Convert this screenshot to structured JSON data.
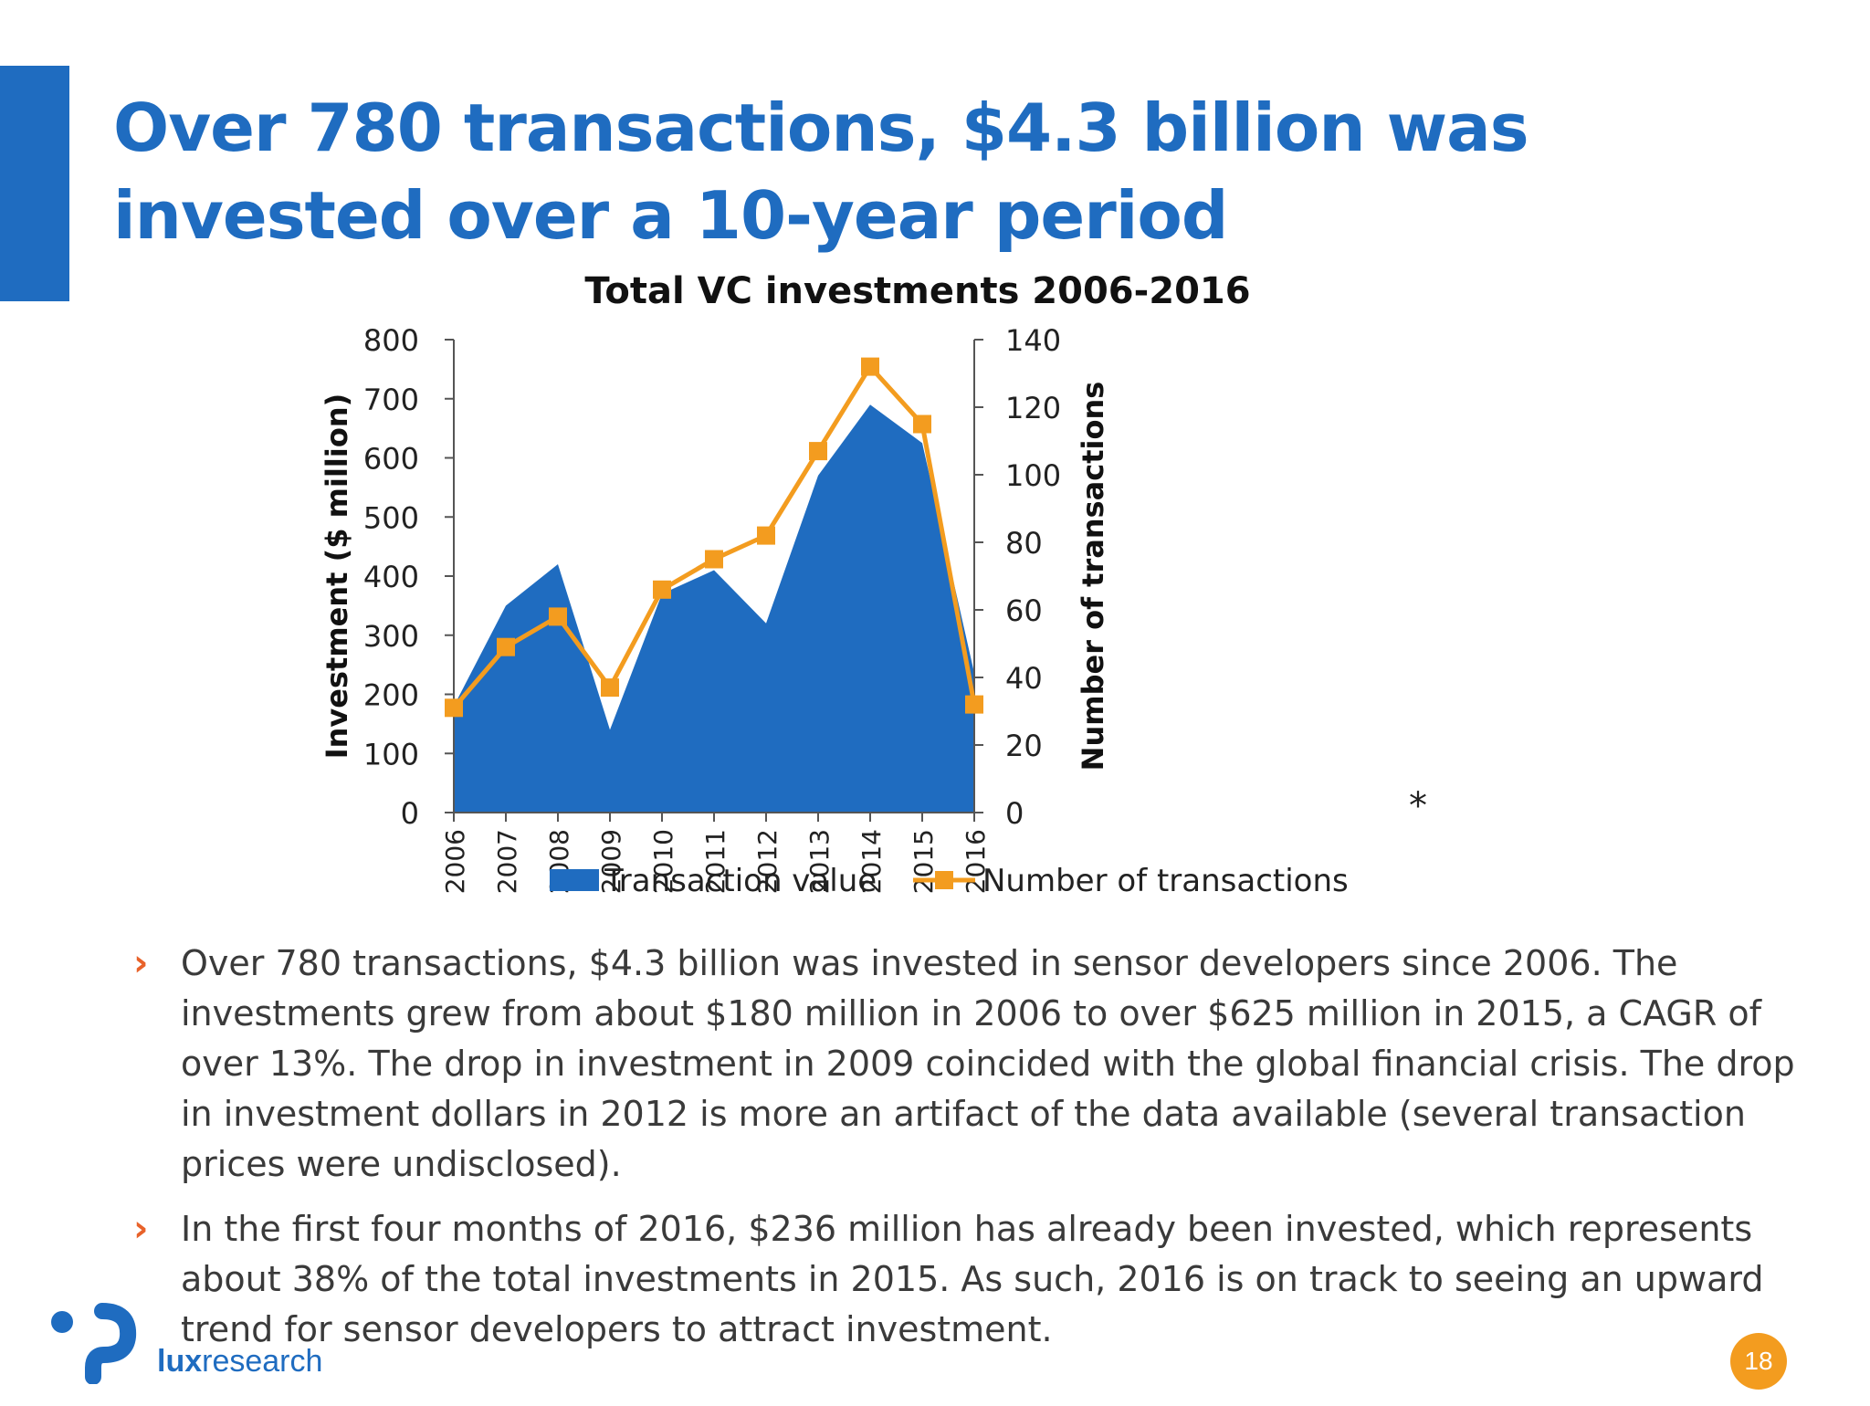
{
  "slide": {
    "title": "Over 780 transactions, $4.3 billion was invested over a 10-year period",
    "page_number": "18",
    "note_mark": "*",
    "brand_color": "#1f6cc0",
    "accent_color": "#f39c1f",
    "bullet_color": "#e8622a"
  },
  "bullets": [
    {
      "text": "Over 780 transactions, $4.3 billion was invested in sensor developers since 2006. The investments grew from about $180 million in 2006 to over $625 million in 2015, a CAGR of over 13%. The drop in investment in 2009 coincided with the global financial crisis. The drop in investment dollars in 2012 is more an artifact of the data available (several transaction prices were undisclosed)."
    },
    {
      "text": "In the first four months of 2016, $236 million has already been invested, which represents about 38% of the total investments in 2015. As such, 2016 is on track to seeing an upward trend for sensor developers to attract investment."
    }
  ],
  "logo": {
    "brand_bold": "lux",
    "brand_rest": "research",
    "icon": "lux-logo-icon"
  },
  "chart_data": {
    "type": "area",
    "title": "Total VC investments 2006-2016",
    "categories": [
      "2006",
      "2007",
      "2008",
      "2009",
      "2010",
      "2011",
      "2012",
      "2013",
      "2014",
      "2015",
      "2016"
    ],
    "series": [
      {
        "name": "Transaction value",
        "type": "area",
        "axis": "left",
        "color": "#1f6cc0",
        "values": [
          180,
          350,
          420,
          140,
          370,
          410,
          320,
          570,
          690,
          625,
          236
        ]
      },
      {
        "name": "Number of transactions",
        "type": "line",
        "axis": "right",
        "color": "#f39c1f",
        "marker": "square",
        "values": [
          31,
          49,
          58,
          37,
          66,
          75,
          82,
          107,
          132,
          115,
          32
        ]
      }
    ],
    "ylabel": "Investment ($ million)",
    "ylim": [
      0,
      800
    ],
    "yticks": [
      "0",
      "100",
      "200",
      "300",
      "400",
      "500",
      "600",
      "700",
      "800"
    ],
    "y2label": "Number of transactions",
    "y2lim": [
      0,
      140
    ],
    "y2ticks": [
      "0",
      "20",
      "40",
      "60",
      "80",
      "100",
      "120",
      "140"
    ],
    "grid": false,
    "legend": "bottom"
  }
}
